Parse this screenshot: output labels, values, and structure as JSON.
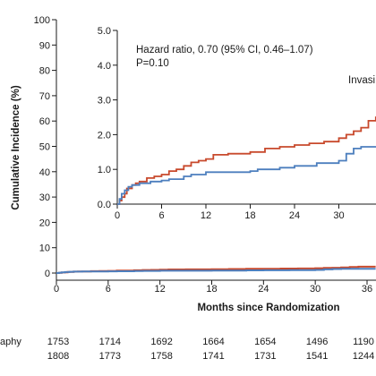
{
  "chart_data": {
    "type": "line",
    "ylabel": "Cumulative Incidence (%)",
    "xlabel": "Months since Randomization",
    "xlim": [
      0,
      36
    ],
    "ylim": [
      0,
      100
    ],
    "x_ticks": [
      0,
      6,
      12,
      18,
      24,
      30,
      36
    ],
    "y_ticks": [
      0,
      10,
      20,
      30,
      40,
      50,
      60,
      70,
      80,
      90,
      100
    ],
    "series": [
      {
        "color": "#c8492c",
        "points": [
          [
            0,
            0
          ],
          [
            0.3,
            0.1
          ],
          [
            0.6,
            0.2
          ],
          [
            1,
            0.3
          ],
          [
            1.3,
            0.45
          ],
          [
            2,
            0.55
          ],
          [
            2.5,
            0.6
          ],
          [
            3,
            0.65
          ],
          [
            4,
            0.75
          ],
          [
            5,
            0.8
          ],
          [
            6,
            0.85
          ],
          [
            7,
            0.95
          ],
          [
            8,
            1.0
          ],
          [
            9,
            1.1
          ],
          [
            10,
            1.2
          ],
          [
            11,
            1.25
          ],
          [
            12,
            1.3
          ],
          [
            13,
            1.42
          ],
          [
            15,
            1.45
          ],
          [
            18,
            1.5
          ],
          [
            20,
            1.6
          ],
          [
            22,
            1.65
          ],
          [
            24,
            1.7
          ],
          [
            26,
            1.75
          ],
          [
            28,
            1.8
          ],
          [
            30,
            1.9
          ],
          [
            31,
            2.0
          ],
          [
            32,
            2.1
          ],
          [
            33,
            2.2
          ],
          [
            34,
            2.4
          ],
          [
            35,
            2.5
          ],
          [
            37,
            2.5
          ]
        ]
      },
      {
        "color": "#4d7fbe",
        "points": [
          [
            0,
            0
          ],
          [
            0.3,
            0.15
          ],
          [
            0.6,
            0.3
          ],
          [
            1,
            0.4
          ],
          [
            1.5,
            0.5
          ],
          [
            2,
            0.55
          ],
          [
            3,
            0.6
          ],
          [
            4.5,
            0.65
          ],
          [
            6,
            0.68
          ],
          [
            7,
            0.72
          ],
          [
            9,
            0.8
          ],
          [
            10,
            0.85
          ],
          [
            12,
            0.92
          ],
          [
            18,
            0.95
          ],
          [
            19,
            1.0
          ],
          [
            22,
            1.05
          ],
          [
            24,
            1.1
          ],
          [
            27,
            1.18
          ],
          [
            30,
            1.25
          ],
          [
            31,
            1.45
          ],
          [
            32,
            1.6
          ],
          [
            33,
            1.65
          ],
          [
            37,
            1.65
          ]
        ]
      }
    ],
    "inset": {
      "type": "line",
      "xlim": [
        0,
        36
      ],
      "ylim": [
        0,
        5
      ],
      "x_ticks": [
        0,
        6,
        12,
        18,
        24,
        30
      ],
      "y_ticks": [
        0,
        1,
        2,
        3,
        4,
        5
      ],
      "annotation_lines": [
        "Hazard ratio, 0.70 (95% CI, 0.46–1.07)",
        "P=0.10"
      ],
      "series_label": "Invasi"
    },
    "risk_table": {
      "rows": [
        {
          "label": "aphy",
          "values": [
            1753,
            1714,
            1692,
            1664,
            1654,
            1496,
            1190
          ]
        },
        {
          "values": [
            1808,
            1773,
            1758,
            1741,
            1731,
            1541,
            1244
          ]
        }
      ]
    }
  }
}
